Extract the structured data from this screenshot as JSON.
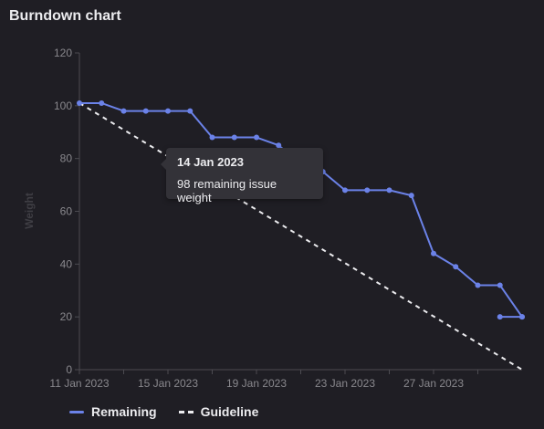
{
  "title": "Burndown chart",
  "chart_data": {
    "type": "line",
    "title": "Burndown chart",
    "ylabel": "Weight",
    "xlabel": "",
    "ylim": [
      0,
      120
    ],
    "y_ticks": [
      0,
      20,
      40,
      60,
      80,
      100,
      120
    ],
    "x_range": [
      "2023-01-11",
      "2023-01-31"
    ],
    "x_tick_labels": [
      {
        "date": "2023-01-11",
        "label": "11 Jan 2023"
      },
      {
        "date": "2023-01-13",
        "label": ""
      },
      {
        "date": "2023-01-15",
        "label": "15 Jan 2023"
      },
      {
        "date": "2023-01-17",
        "label": ""
      },
      {
        "date": "2023-01-19",
        "label": "19 Jan 2023"
      },
      {
        "date": "2023-01-21",
        "label": ""
      },
      {
        "date": "2023-01-23",
        "label": "23 Jan 2023"
      },
      {
        "date": "2023-01-25",
        "label": ""
      },
      {
        "date": "2023-01-27",
        "label": "27 Jan 2023"
      },
      {
        "date": "2023-01-29",
        "label": ""
      }
    ],
    "legend_position": "bottom-left",
    "series": [
      {
        "name": "Remaining",
        "color": "#6b82e8",
        "style": "solid",
        "points": [
          {
            "x": "2023-01-11",
            "y": 101
          },
          {
            "x": "2023-01-12",
            "y": 101
          },
          {
            "x": "2023-01-13",
            "y": 98
          },
          {
            "x": "2023-01-14",
            "y": 98
          },
          {
            "x": "2023-01-15",
            "y": 98
          },
          {
            "x": "2023-01-16",
            "y": 98
          },
          {
            "x": "2023-01-17",
            "y": 88
          },
          {
            "x": "2023-01-18",
            "y": 88
          },
          {
            "x": "2023-01-19",
            "y": 88
          },
          {
            "x": "2023-01-20",
            "y": 85
          },
          {
            "x": "2023-01-21",
            "y": 78
          },
          {
            "x": "2023-01-22",
            "y": 75
          },
          {
            "x": "2023-01-23",
            "y": 68
          },
          {
            "x": "2023-01-24",
            "y": 68
          },
          {
            "x": "2023-01-25",
            "y": 68
          },
          {
            "x": "2023-01-26",
            "y": 66
          },
          {
            "x": "2023-01-27",
            "y": 44
          },
          {
            "x": "2023-01-28",
            "y": 39
          },
          {
            "x": "2023-01-29",
            "y": 32
          },
          {
            "x": "2023-01-30",
            "y": 32
          },
          {
            "x": "2023-01-31",
            "y": 20
          }
        ],
        "extra_segment": [
          {
            "x": "2023-01-30",
            "y": 20
          },
          {
            "x": "2023-01-31",
            "y": 20
          }
        ]
      },
      {
        "name": "Guideline",
        "color": "#ececef",
        "style": "dashed",
        "points": [
          {
            "x": "2023-01-11",
            "y": 101
          },
          {
            "x": "2023-01-31",
            "y": 0
          }
        ]
      }
    ],
    "tooltip": {
      "date": "14 Jan 2023",
      "text": "98 remaining issue weight"
    }
  },
  "legend": {
    "remaining_label": "Remaining",
    "guideline_label": "Guideline"
  }
}
